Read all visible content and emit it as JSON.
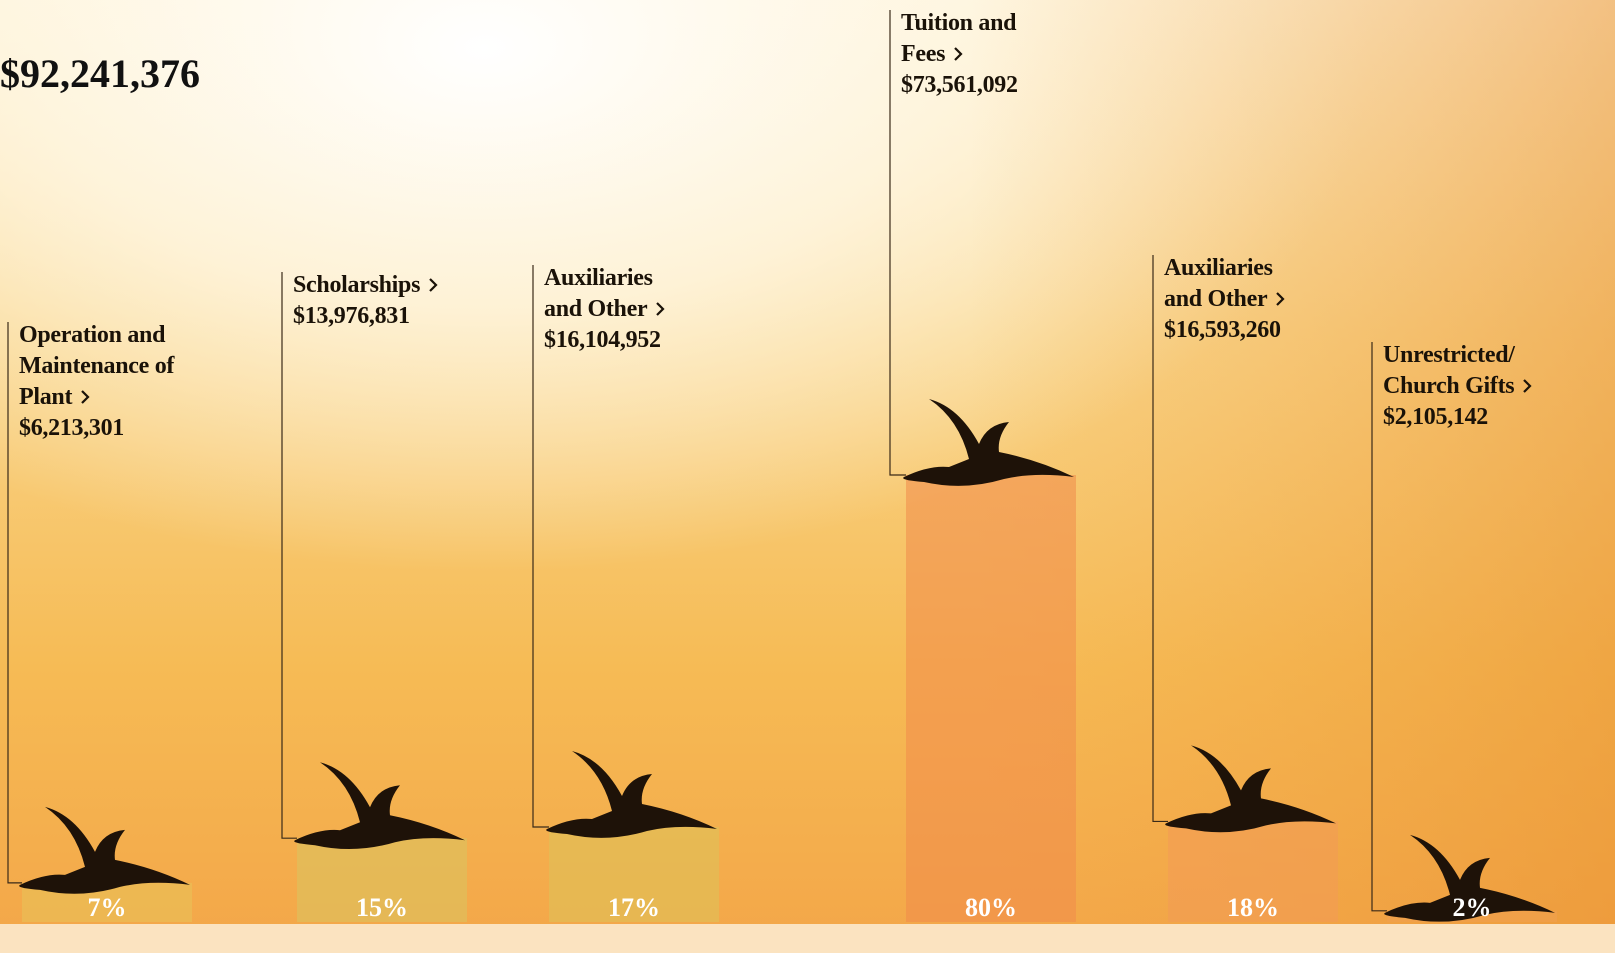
{
  "chart_data": {
    "type": "bar",
    "title": "$92,241,376",
    "categories": [
      "Operation and Maintenance of Plant",
      "Scholarships",
      "Auxiliaries and Other",
      "Tuition and Fees",
      "Auxiliaries and Other",
      "Unrestricted/ Church Gifts"
    ],
    "amounts": [
      "$6,213,301",
      "$13,976,831",
      "$16,104,952",
      "$73,561,092",
      "$16,593,260",
      "$2,105,142"
    ],
    "values": [
      7,
      15,
      17,
      80,
      18,
      2
    ],
    "value_labels": [
      "7%",
      "15%",
      "17%",
      "80%",
      "18%",
      "2%"
    ],
    "colors": [
      "#e8c25a",
      "#d9c560",
      "#dcc25a",
      "#f08a4a",
      "#f29a55",
      "#f0a050"
    ]
  }
}
